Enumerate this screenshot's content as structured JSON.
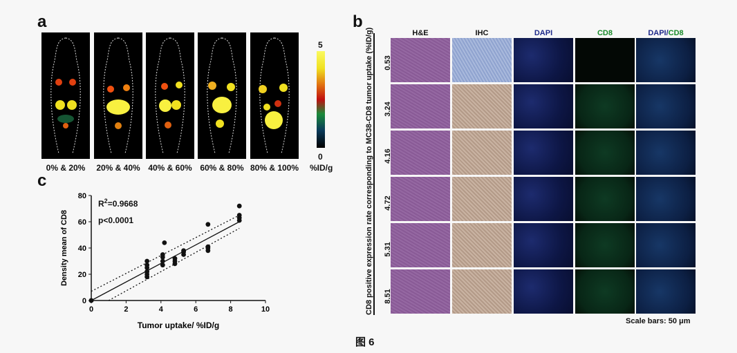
{
  "panel_a": {
    "letter": "a",
    "images": [
      {
        "label": "0% & 20%"
      },
      {
        "label": "20% & 40%"
      },
      {
        "label": "40% & 60%"
      },
      {
        "label": "60% & 80%"
      },
      {
        "label": "80% & 100%"
      }
    ],
    "colorbar": {
      "max": "5",
      "min": "0",
      "unit": "%ID/g"
    }
  },
  "panel_b": {
    "letter": "b",
    "columns": [
      "H&E",
      "IHC",
      "DAPI",
      "CD8",
      "DAPI/",
      "CD8"
    ],
    "rows": [
      "0.53",
      "3.24",
      "4.16",
      "4.72",
      "5.31",
      "8.51"
    ],
    "y_title": "CD8 positive expression rate corresponding to MC38-CD8 tumor uptake (%ID/g)",
    "scale_bar": "Scale bars: 50 μm",
    "colors": {
      "dapi_header": "#1e2a8a",
      "cd8_header": "#1a8a2a"
    }
  },
  "panel_c": {
    "letter": "c",
    "r2_prefix": "R",
    "r2_sup": "2",
    "r2_value": "=0.9668",
    "p_text": "p<0.0001"
  },
  "chart_data": {
    "type": "scatter",
    "xlabel": "Tumor uptake/ %ID/g",
    "ylabel": "Density mean of CD8",
    "xlim": [
      0,
      10
    ],
    "ylim": [
      0,
      80
    ],
    "xticks": [
      0,
      2,
      4,
      6,
      8,
      10
    ],
    "yticks": [
      0,
      20,
      40,
      60,
      80
    ],
    "points": [
      {
        "x": 0,
        "y": 0
      },
      {
        "x": 0,
        "y": 0
      },
      {
        "x": 3.2,
        "y": 18
      },
      {
        "x": 3.2,
        "y": 20
      },
      {
        "x": 3.2,
        "y": 22
      },
      {
        "x": 3.2,
        "y": 25
      },
      {
        "x": 3.2,
        "y": 27
      },
      {
        "x": 3.2,
        "y": 30
      },
      {
        "x": 4.1,
        "y": 27
      },
      {
        "x": 4.1,
        "y": 30
      },
      {
        "x": 4.1,
        "y": 33
      },
      {
        "x": 4.1,
        "y": 35
      },
      {
        "x": 4.2,
        "y": 44
      },
      {
        "x": 4.8,
        "y": 28
      },
      {
        "x": 4.8,
        "y": 30
      },
      {
        "x": 4.8,
        "y": 32
      },
      {
        "x": 5.3,
        "y": 35
      },
      {
        "x": 5.3,
        "y": 37
      },
      {
        "x": 5.3,
        "y": 38
      },
      {
        "x": 6.7,
        "y": 38
      },
      {
        "x": 6.7,
        "y": 40
      },
      {
        "x": 6.7,
        "y": 41
      },
      {
        "x": 6.7,
        "y": 58
      },
      {
        "x": 8.5,
        "y": 61
      },
      {
        "x": 8.5,
        "y": 63
      },
      {
        "x": 8.5,
        "y": 65
      },
      {
        "x": 8.5,
        "y": 72
      }
    ],
    "fit": {
      "x": [
        0,
        8.5
      ],
      "y": [
        0,
        60
      ]
    },
    "ci_upper": {
      "x": [
        0,
        8.5
      ],
      "y": [
        7,
        65
      ]
    },
    "ci_lower": {
      "x": [
        1,
        8.5
      ],
      "y": [
        0,
        55
      ]
    }
  },
  "caption": "图 6"
}
